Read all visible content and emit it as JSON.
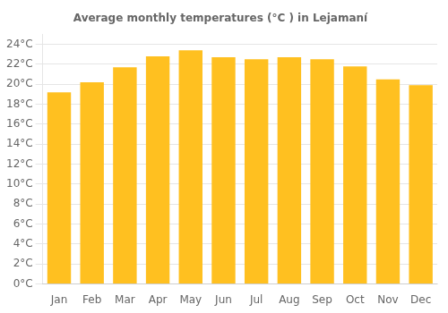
{
  "chart_data": {
    "type": "bar",
    "title": "Average monthly temperatures (°C ) in Lejamaní",
    "categories": [
      "Jan",
      "Feb",
      "Mar",
      "Apr",
      "May",
      "Jun",
      "Jul",
      "Aug",
      "Sep",
      "Oct",
      "Nov",
      "Dec"
    ],
    "values": [
      19.2,
      20.2,
      21.7,
      22.8,
      23.4,
      22.7,
      22.5,
      22.7,
      22.5,
      21.8,
      20.5,
      19.9
    ],
    "color": "#FFC020",
    "ylim": [
      0,
      25
    ],
    "yticks": [
      {
        "value": 0,
        "label": "0°C"
      },
      {
        "value": 2,
        "label": "2°C"
      },
      {
        "value": 4,
        "label": "4°C"
      },
      {
        "value": 6,
        "label": "6°C"
      },
      {
        "value": 8,
        "label": "8°C"
      },
      {
        "value": 10,
        "label": "10°C"
      },
      {
        "value": 12,
        "label": "12°C"
      },
      {
        "value": 14,
        "label": "14°C"
      },
      {
        "value": 16,
        "label": "16°C"
      },
      {
        "value": 18,
        "label": "18°C"
      },
      {
        "value": 20,
        "label": "20°C"
      },
      {
        "value": 22,
        "label": "22°C"
      },
      {
        "value": 24,
        "label": "24°C"
      }
    ],
    "grid": true
  }
}
